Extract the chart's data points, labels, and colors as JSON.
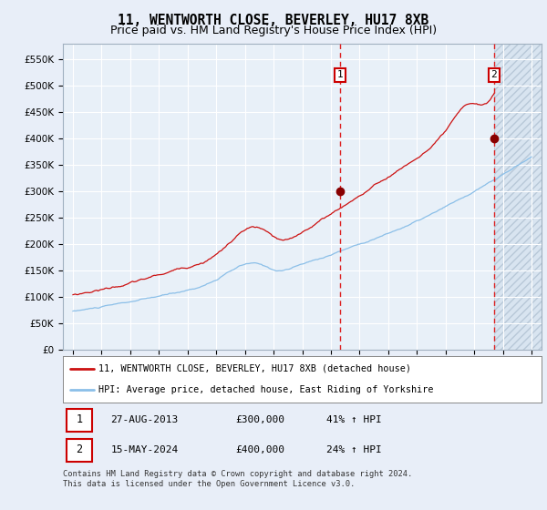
{
  "title": "11, WENTWORTH CLOSE, BEVERLEY, HU17 8XB",
  "subtitle": "Price paid vs. HM Land Registry's House Price Index (HPI)",
  "ylim": [
    0,
    580000
  ],
  "yticks": [
    0,
    50000,
    100000,
    150000,
    200000,
    250000,
    300000,
    350000,
    400000,
    450000,
    500000,
    550000
  ],
  "year_start": 1995,
  "year_end": 2027,
  "xtick_years": [
    1995,
    1997,
    1999,
    2001,
    2003,
    2005,
    2007,
    2009,
    2011,
    2013,
    2015,
    2017,
    2019,
    2021,
    2023,
    2025,
    2027
  ],
  "hpi_line_color": "#8bbfe8",
  "price_line_color": "#cc1111",
  "bg_color": "#e8eef8",
  "plot_bg_color": "#e8f0f8",
  "grid_color": "#ffffff",
  "marker_color": "#880000",
  "vline1_color": "#dd2222",
  "vline2_color": "#dd2222",
  "transaction1_year": 2013.66,
  "transaction1_price": 300000,
  "transaction1_label": "1",
  "transaction1_date": "27-AUG-2013",
  "transaction1_pct": "41% ↑ HPI",
  "transaction2_year": 2024.38,
  "transaction2_price": 400000,
  "transaction2_label": "2",
  "transaction2_date": "15-MAY-2024",
  "transaction2_pct": "24% ↑ HPI",
  "future_start_year": 2024.42,
  "legend_label1": "11, WENTWORTH CLOSE, BEVERLEY, HU17 8XB (detached house)",
  "legend_label2": "HPI: Average price, detached house, East Riding of Yorkshire",
  "footnote": "Contains HM Land Registry data © Crown copyright and database right 2024.\nThis data is licensed under the Open Government Licence v3.0.",
  "title_fontsize": 10.5,
  "subtitle_fontsize": 9,
  "tick_fontsize": 7.5
}
